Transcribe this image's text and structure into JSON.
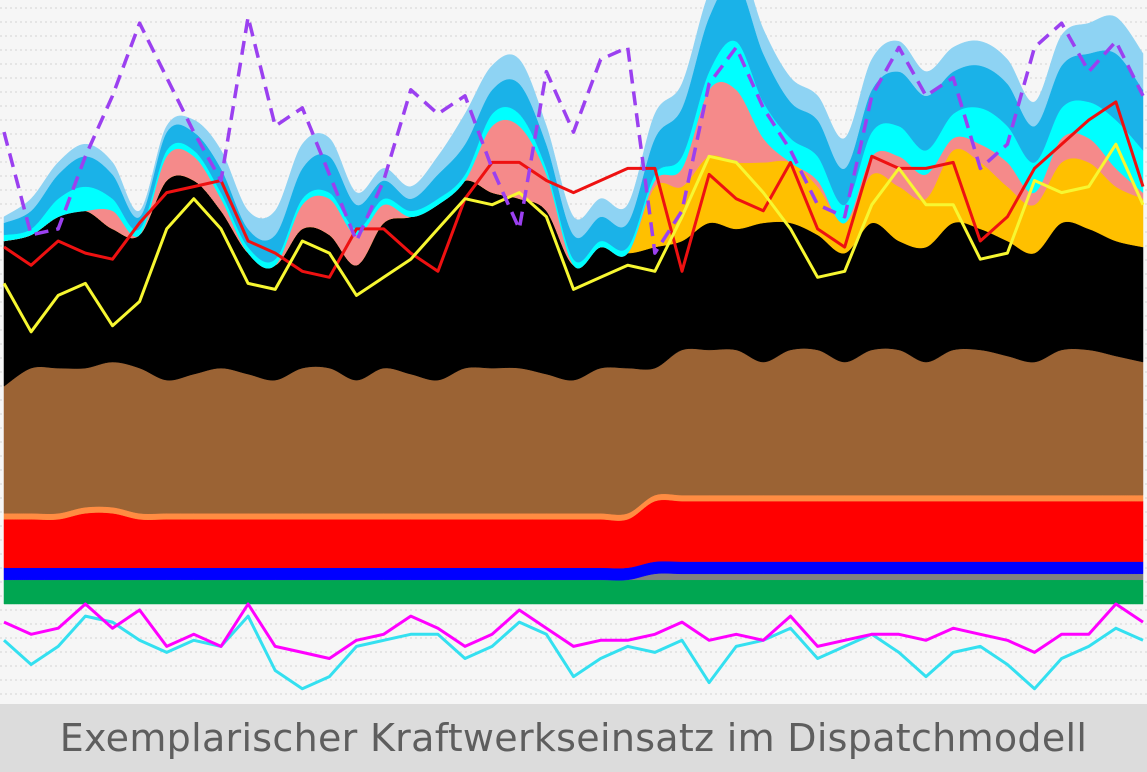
{
  "caption": "Exemplarischer Kraftwerkseinsatz im Dispatchmodell",
  "chart_data": {
    "type": "area",
    "title": "",
    "xlabel": "",
    "ylabel": "",
    "grid": true,
    "legend": "none",
    "x": [
      0,
      4,
      8,
      12,
      16,
      20,
      24,
      28,
      32,
      36,
      40,
      44,
      48,
      52,
      56,
      60,
      64,
      68,
      72,
      76,
      80,
      84,
      88,
      92,
      96,
      100,
      104,
      108,
      112,
      116,
      120,
      124,
      128,
      132,
      136,
      140,
      144,
      148,
      152,
      156,
      160,
      164,
      168
    ],
    "x_unit": "hour",
    "ylim": [
      0,
      100
    ],
    "stacked_series": [
      {
        "name": "",
        "color": "#00a651",
        "values": [
          4,
          4,
          4,
          4,
          4,
          4,
          4,
          4,
          4,
          4,
          4,
          4,
          4,
          4,
          4,
          4,
          4,
          4,
          4,
          4,
          4,
          4,
          4,
          4,
          4,
          4,
          4,
          4,
          4,
          4,
          4,
          4,
          4,
          4,
          4,
          4,
          4,
          4,
          4,
          4,
          4,
          4,
          4
        ]
      },
      {
        "name": "",
        "color": "#808080",
        "values": [
          0,
          0,
          0,
          0,
          0,
          0,
          0,
          0,
          0,
          0,
          0,
          0,
          0,
          0,
          0,
          0,
          0,
          0,
          0,
          0,
          0,
          0,
          0,
          0,
          1,
          1,
          1,
          1,
          1,
          1,
          1,
          1,
          1,
          1,
          1,
          1,
          1,
          1,
          1,
          1,
          1,
          1,
          1
        ]
      },
      {
        "name": "",
        "color": "#0000ff",
        "values": [
          2,
          2,
          2,
          2,
          2,
          2,
          2,
          2,
          2,
          2,
          2,
          2,
          2,
          2,
          2,
          2,
          2,
          2,
          2,
          2,
          2,
          2,
          2,
          2,
          2,
          2,
          2,
          2,
          2,
          2,
          2,
          2,
          2,
          2,
          2,
          2,
          2,
          2,
          2,
          2,
          2,
          2,
          2
        ]
      },
      {
        "name": "",
        "color": "#ff0000",
        "values": [
          8,
          8,
          8,
          9,
          9,
          8,
          8,
          8,
          8,
          8,
          8,
          8,
          8,
          8,
          8,
          8,
          8,
          8,
          8,
          8,
          8,
          8,
          8,
          8,
          10,
          10,
          10,
          10,
          10,
          10,
          10,
          10,
          10,
          10,
          10,
          10,
          10,
          10,
          10,
          10,
          10,
          10,
          10
        ]
      },
      {
        "name": "",
        "color": "#ff8c42",
        "values": [
          1,
          1,
          1,
          1,
          1,
          1,
          1,
          1,
          1,
          1,
          1,
          1,
          1,
          1,
          1,
          1,
          1,
          1,
          1,
          1,
          1,
          1,
          1,
          1,
          1,
          1,
          1,
          1,
          1,
          1,
          1,
          1,
          1,
          1,
          1,
          1,
          1,
          1,
          1,
          1,
          1,
          1,
          1
        ]
      },
      {
        "name": "",
        "color": "#9b6334",
        "values": [
          21,
          24,
          24,
          23,
          24,
          24,
          22,
          23,
          24,
          23,
          22,
          24,
          24,
          22,
          24,
          23,
          22,
          24,
          24,
          24,
          23,
          22,
          24,
          24,
          21,
          24,
          24,
          24,
          22,
          24,
          24,
          22,
          24,
          24,
          22,
          24,
          24,
          23,
          22,
          24,
          24,
          23,
          22
        ]
      },
      {
        "name": "",
        "color": "#000000",
        "values": [
          24,
          22,
          25,
          26,
          22,
          22,
          33,
          32,
          26,
          20,
          19,
          23,
          22,
          19,
          24,
          26,
          29,
          31,
          29,
          28,
          27,
          19,
          20,
          19,
          20,
          18,
          21,
          20,
          23,
          21,
          19,
          18,
          21,
          18,
          19,
          21,
          20,
          19,
          18,
          21,
          20,
          19,
          19
        ]
      },
      {
        "name": "",
        "color": "#ffc000",
        "values": [
          0,
          0,
          0,
          0,
          0,
          0,
          0,
          0,
          0,
          0,
          0,
          0,
          0,
          0,
          0,
          0,
          0,
          0,
          0,
          0,
          0,
          0,
          0,
          0,
          10,
          9,
          11,
          11,
          10,
          10,
          8,
          5,
          8,
          9,
          8,
          12,
          11,
          9,
          8,
          10,
          11,
          9,
          8
        ]
      },
      {
        "name": "",
        "color": "#f58a8a",
        "values": [
          0,
          0,
          0,
          0,
          3,
          0,
          4,
          4,
          2,
          0,
          0,
          4,
          6,
          5,
          3,
          0,
          0,
          0,
          11,
          12,
          6,
          0,
          0,
          0,
          1,
          3,
          11,
          12,
          4,
          0,
          1,
          0,
          3,
          5,
          4,
          2,
          3,
          4,
          2,
          4,
          4,
          3,
          1
        ]
      },
      {
        "name": "",
        "color": "#00ffff",
        "values": [
          1,
          1,
          3,
          4,
          2,
          1,
          1,
          1,
          1,
          1,
          1,
          1,
          1,
          1,
          1,
          1,
          1,
          1,
          2,
          2,
          1,
          1,
          1,
          1,
          1,
          2,
          3,
          8,
          6,
          4,
          4,
          3,
          4,
          5,
          4,
          4,
          6,
          6,
          5,
          5,
          6,
          8,
          7
        ]
      },
      {
        "name": "",
        "color": "#1ab2e8",
        "values": [
          2,
          3,
          4,
          5,
          4,
          2,
          3,
          3,
          4,
          3,
          4,
          5,
          6,
          4,
          3,
          2,
          4,
          5,
          4,
          5,
          4,
          4,
          4,
          4,
          6,
          8,
          9,
          10,
          8,
          6,
          6,
          6,
          7,
          9,
          9,
          7,
          7,
          7,
          6,
          7,
          8,
          11,
          10
        ]
      },
      {
        "name": "",
        "color": "#8ed3f3",
        "values": [
          1,
          2,
          2,
          2,
          2,
          1,
          1,
          2,
          3,
          3,
          4,
          4,
          3,
          2,
          2,
          2,
          3,
          5,
          4,
          4,
          3,
          3,
          3,
          3,
          4,
          4,
          4,
          4,
          4,
          4,
          4,
          5,
          5,
          5,
          4,
          4,
          4,
          4,
          4,
          5,
          5,
          6,
          6
        ]
      }
    ],
    "line_series": [
      {
        "name": "",
        "color": "#ee1111",
        "style": "solid",
        "values": [
          59,
          56,
          60,
          58,
          57,
          63,
          68,
          69,
          70,
          60,
          58,
          55,
          54,
          62,
          62,
          58,
          55,
          67,
          73,
          73,
          70,
          68,
          70,
          72,
          72,
          55,
          71,
          67,
          65,
          73,
          62,
          59,
          74,
          72,
          72,
          73,
          60,
          64,
          72,
          76,
          80,
          83,
          69
        ]
      },
      {
        "name": "",
        "color": "#f7f731",
        "style": "solid",
        "values": [
          53,
          45,
          51,
          53,
          46,
          50,
          62,
          67,
          62,
          53,
          52,
          60,
          58,
          51,
          54,
          57,
          62,
          67,
          66,
          68,
          64,
          52,
          54,
          56,
          55,
          64,
          74,
          73,
          68,
          62,
          54,
          55,
          66,
          72,
          66,
          66,
          57,
          58,
          70,
          68,
          69,
          76,
          66
        ]
      },
      {
        "name": "",
        "color": "#9b40f0",
        "style": "dashed",
        "values": [
          78,
          61,
          62,
          74,
          84,
          96,
          87,
          78,
          70,
          97,
          79,
          82,
          71,
          60,
          70,
          85,
          81,
          84,
          72,
          62,
          88,
          78,
          90,
          92,
          58,
          65,
          86,
          92,
          82,
          75,
          66,
          64,
          84,
          92,
          84,
          87,
          72,
          76,
          92,
          96,
          88,
          93,
          84
        ]
      },
      {
        "name": "",
        "color": "#34e0f0",
        "style": "solid",
        "values": [
          -6,
          -10,
          -7,
          -2,
          -3,
          -6,
          -8,
          -6,
          -7,
          -2,
          -11,
          -14,
          -12,
          -7,
          -6,
          -5,
          -5,
          -9,
          -7,
          -3,
          -5,
          -12,
          -9,
          -7,
          -8,
          -6,
          -13,
          -7,
          -6,
          -4,
          -9,
          -7,
          -5,
          -8,
          -12,
          -8,
          -7,
          -10,
          -14,
          -9,
          -7,
          -4,
          -6
        ]
      },
      {
        "name": "",
        "color": "#ff00ff",
        "style": "solid",
        "values": [
          -3,
          -5,
          -4,
          0,
          -4,
          -1,
          -7,
          -5,
          -7,
          0,
          -7,
          -8,
          -9,
          -6,
          -5,
          -2,
          -4,
          -7,
          -5,
          -1,
          -4,
          -7,
          -6,
          -6,
          -5,
          -3,
          -6,
          -5,
          -6,
          -2,
          -7,
          -6,
          -5,
          -5,
          -6,
          -4,
          -5,
          -6,
          -8,
          -5,
          -5,
          0,
          -3
        ]
      }
    ]
  },
  "style": {
    "background": "#f6f6f6",
    "grid_color": "#d4d4d4",
    "caption_background": "#dcdcdc",
    "caption_color": "#5e5e5e"
  }
}
